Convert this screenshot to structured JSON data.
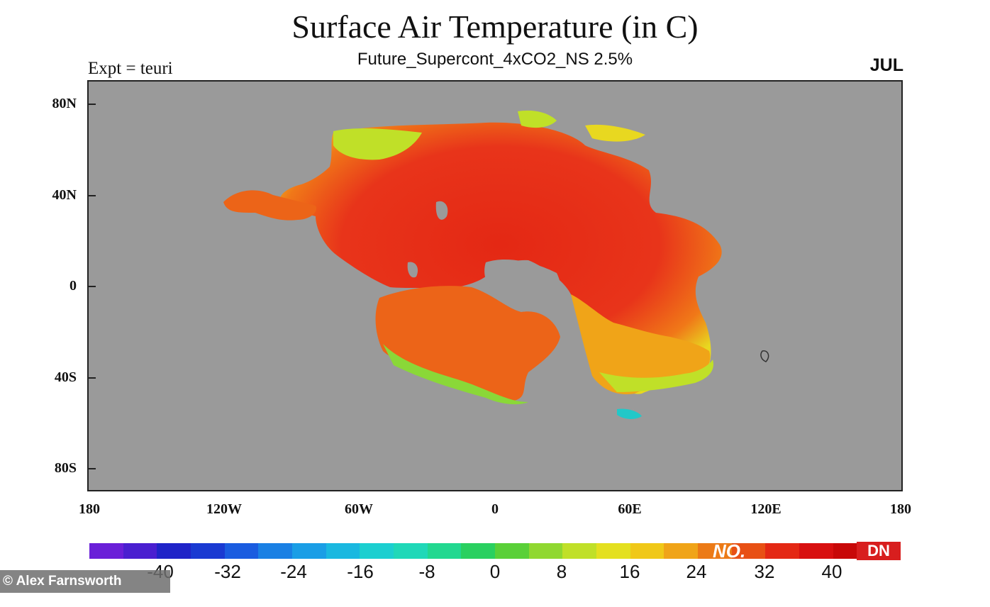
{
  "title": "Surface Air Temperature (in C)",
  "subtitle": "Future_Supercont_4xCO2_NS 2.5%",
  "expt_label": "Expt = teuri",
  "month": "JUL",
  "y_ticks": [
    "80N",
    "40N",
    "0",
    "40S",
    "80S"
  ],
  "x_ticks": [
    "180",
    "120W",
    "60W",
    "0",
    "60E",
    "120E",
    "180"
  ],
  "colorbar": {
    "labels": [
      "-40",
      "-32",
      "-24",
      "-16",
      "-8",
      "0",
      "8",
      "16",
      "24",
      "32",
      "40"
    ],
    "colors": [
      "#6a1fd8",
      "#4a1fd0",
      "#2024c8",
      "#1a3ad2",
      "#1a5ce0",
      "#1a80e4",
      "#1a9ee6",
      "#1ab8e0",
      "#1ccfd0",
      "#20d8b8",
      "#22d890",
      "#2ad060",
      "#5ad038",
      "#90d830",
      "#c0e028",
      "#e4e020",
      "#f0c818",
      "#f0a418",
      "#ec7a16",
      "#e85014",
      "#e42814",
      "#d81010",
      "#c80808",
      "#b80404"
    ]
  },
  "credit": "© Alex Farnsworth",
  "watermark_left": "NO.",
  "watermark_right": "DN",
  "colors": {
    "ocean": "#9a9a9a",
    "hot": "#e8341a",
    "warm": "#f07818",
    "mild": "#e8d820",
    "cool": "#8ad838"
  }
}
